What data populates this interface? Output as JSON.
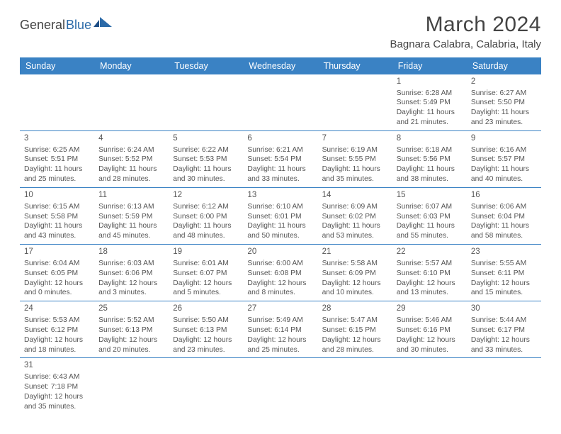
{
  "brand": {
    "part1": "General",
    "part2": "Blue"
  },
  "title": "March 2024",
  "location": "Bagnara Calabra, Calabria, Italy",
  "colors": {
    "accent": "#3a82c4",
    "text": "#555",
    "logoBlue": "#2b6aa8"
  },
  "dayLabels": [
    "Sunday",
    "Monday",
    "Tuesday",
    "Wednesday",
    "Thursday",
    "Friday",
    "Saturday"
  ],
  "weeks": [
    [
      null,
      null,
      null,
      null,
      null,
      {
        "n": "1",
        "sr": "Sunrise: 6:28 AM",
        "ss": "Sunset: 5:49 PM",
        "dl1": "Daylight: 11 hours",
        "dl2": "and 21 minutes."
      },
      {
        "n": "2",
        "sr": "Sunrise: 6:27 AM",
        "ss": "Sunset: 5:50 PM",
        "dl1": "Daylight: 11 hours",
        "dl2": "and 23 minutes."
      }
    ],
    [
      {
        "n": "3",
        "sr": "Sunrise: 6:25 AM",
        "ss": "Sunset: 5:51 PM",
        "dl1": "Daylight: 11 hours",
        "dl2": "and 25 minutes."
      },
      {
        "n": "4",
        "sr": "Sunrise: 6:24 AM",
        "ss": "Sunset: 5:52 PM",
        "dl1": "Daylight: 11 hours",
        "dl2": "and 28 minutes."
      },
      {
        "n": "5",
        "sr": "Sunrise: 6:22 AM",
        "ss": "Sunset: 5:53 PM",
        "dl1": "Daylight: 11 hours",
        "dl2": "and 30 minutes."
      },
      {
        "n": "6",
        "sr": "Sunrise: 6:21 AM",
        "ss": "Sunset: 5:54 PM",
        "dl1": "Daylight: 11 hours",
        "dl2": "and 33 minutes."
      },
      {
        "n": "7",
        "sr": "Sunrise: 6:19 AM",
        "ss": "Sunset: 5:55 PM",
        "dl1": "Daylight: 11 hours",
        "dl2": "and 35 minutes."
      },
      {
        "n": "8",
        "sr": "Sunrise: 6:18 AM",
        "ss": "Sunset: 5:56 PM",
        "dl1": "Daylight: 11 hours",
        "dl2": "and 38 minutes."
      },
      {
        "n": "9",
        "sr": "Sunrise: 6:16 AM",
        "ss": "Sunset: 5:57 PM",
        "dl1": "Daylight: 11 hours",
        "dl2": "and 40 minutes."
      }
    ],
    [
      {
        "n": "10",
        "sr": "Sunrise: 6:15 AM",
        "ss": "Sunset: 5:58 PM",
        "dl1": "Daylight: 11 hours",
        "dl2": "and 43 minutes."
      },
      {
        "n": "11",
        "sr": "Sunrise: 6:13 AM",
        "ss": "Sunset: 5:59 PM",
        "dl1": "Daylight: 11 hours",
        "dl2": "and 45 minutes."
      },
      {
        "n": "12",
        "sr": "Sunrise: 6:12 AM",
        "ss": "Sunset: 6:00 PM",
        "dl1": "Daylight: 11 hours",
        "dl2": "and 48 minutes."
      },
      {
        "n": "13",
        "sr": "Sunrise: 6:10 AM",
        "ss": "Sunset: 6:01 PM",
        "dl1": "Daylight: 11 hours",
        "dl2": "and 50 minutes."
      },
      {
        "n": "14",
        "sr": "Sunrise: 6:09 AM",
        "ss": "Sunset: 6:02 PM",
        "dl1": "Daylight: 11 hours",
        "dl2": "and 53 minutes."
      },
      {
        "n": "15",
        "sr": "Sunrise: 6:07 AM",
        "ss": "Sunset: 6:03 PM",
        "dl1": "Daylight: 11 hours",
        "dl2": "and 55 minutes."
      },
      {
        "n": "16",
        "sr": "Sunrise: 6:06 AM",
        "ss": "Sunset: 6:04 PM",
        "dl1": "Daylight: 11 hours",
        "dl2": "and 58 minutes."
      }
    ],
    [
      {
        "n": "17",
        "sr": "Sunrise: 6:04 AM",
        "ss": "Sunset: 6:05 PM",
        "dl1": "Daylight: 12 hours",
        "dl2": "and 0 minutes."
      },
      {
        "n": "18",
        "sr": "Sunrise: 6:03 AM",
        "ss": "Sunset: 6:06 PM",
        "dl1": "Daylight: 12 hours",
        "dl2": "and 3 minutes."
      },
      {
        "n": "19",
        "sr": "Sunrise: 6:01 AM",
        "ss": "Sunset: 6:07 PM",
        "dl1": "Daylight: 12 hours",
        "dl2": "and 5 minutes."
      },
      {
        "n": "20",
        "sr": "Sunrise: 6:00 AM",
        "ss": "Sunset: 6:08 PM",
        "dl1": "Daylight: 12 hours",
        "dl2": "and 8 minutes."
      },
      {
        "n": "21",
        "sr": "Sunrise: 5:58 AM",
        "ss": "Sunset: 6:09 PM",
        "dl1": "Daylight: 12 hours",
        "dl2": "and 10 minutes."
      },
      {
        "n": "22",
        "sr": "Sunrise: 5:57 AM",
        "ss": "Sunset: 6:10 PM",
        "dl1": "Daylight: 12 hours",
        "dl2": "and 13 minutes."
      },
      {
        "n": "23",
        "sr": "Sunrise: 5:55 AM",
        "ss": "Sunset: 6:11 PM",
        "dl1": "Daylight: 12 hours",
        "dl2": "and 15 minutes."
      }
    ],
    [
      {
        "n": "24",
        "sr": "Sunrise: 5:53 AM",
        "ss": "Sunset: 6:12 PM",
        "dl1": "Daylight: 12 hours",
        "dl2": "and 18 minutes."
      },
      {
        "n": "25",
        "sr": "Sunrise: 5:52 AM",
        "ss": "Sunset: 6:13 PM",
        "dl1": "Daylight: 12 hours",
        "dl2": "and 20 minutes."
      },
      {
        "n": "26",
        "sr": "Sunrise: 5:50 AM",
        "ss": "Sunset: 6:13 PM",
        "dl1": "Daylight: 12 hours",
        "dl2": "and 23 minutes."
      },
      {
        "n": "27",
        "sr": "Sunrise: 5:49 AM",
        "ss": "Sunset: 6:14 PM",
        "dl1": "Daylight: 12 hours",
        "dl2": "and 25 minutes."
      },
      {
        "n": "28",
        "sr": "Sunrise: 5:47 AM",
        "ss": "Sunset: 6:15 PM",
        "dl1": "Daylight: 12 hours",
        "dl2": "and 28 minutes."
      },
      {
        "n": "29",
        "sr": "Sunrise: 5:46 AM",
        "ss": "Sunset: 6:16 PM",
        "dl1": "Daylight: 12 hours",
        "dl2": "and 30 minutes."
      },
      {
        "n": "30",
        "sr": "Sunrise: 5:44 AM",
        "ss": "Sunset: 6:17 PM",
        "dl1": "Daylight: 12 hours",
        "dl2": "and 33 minutes."
      }
    ],
    [
      {
        "n": "31",
        "sr": "Sunrise: 6:43 AM",
        "ss": "Sunset: 7:18 PM",
        "dl1": "Daylight: 12 hours",
        "dl2": "and 35 minutes."
      },
      null,
      null,
      null,
      null,
      null,
      null
    ]
  ]
}
